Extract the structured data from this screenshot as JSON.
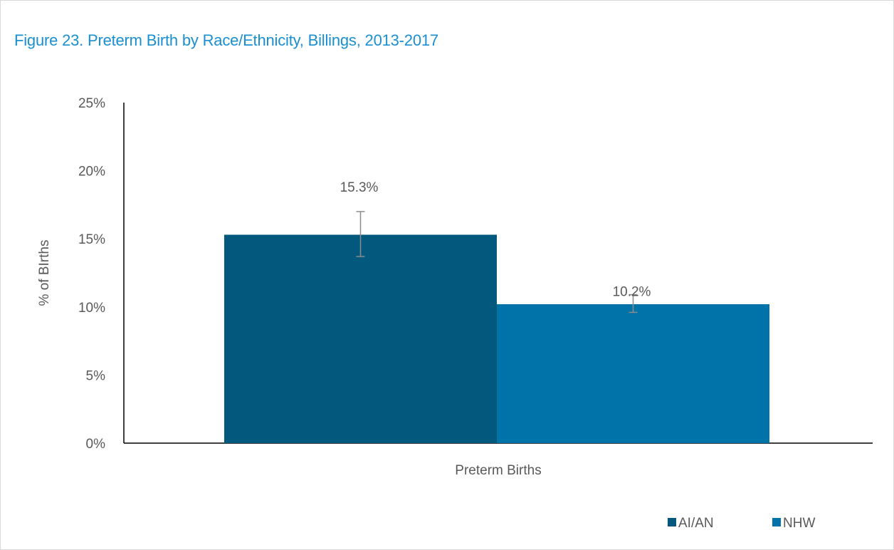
{
  "title": "Figure 23. Preterm Birth by Race/Ethnicity, Billings, 2013-2017",
  "chart_data": {
    "type": "bar",
    "title": "Figure 23. Preterm Birth by Race/Ethnicity, Billings, 2013-2017",
    "categories": [
      "Preterm Births"
    ],
    "xlabel": "",
    "ylabel": "% of BIrths",
    "ylim": [
      0,
      25
    ],
    "yticks": [
      "0%",
      "5%",
      "10%",
      "15%",
      "20%",
      "25%"
    ],
    "ytick_values": [
      0,
      5,
      10,
      15,
      20,
      25
    ],
    "grid": false,
    "legend_position": "bottom-right",
    "series": [
      {
        "name": "AI/AN",
        "values": [
          15.3
        ],
        "labels": [
          "15.3%"
        ],
        "error_low": [
          13.7
        ],
        "error_high": [
          17.0
        ],
        "color": "#02587d"
      },
      {
        "name": "NHW",
        "values": [
          10.2
        ],
        "labels": [
          "10.2%"
        ],
        "error_low": [
          9.6
        ],
        "error_high": [
          10.9
        ],
        "color": "#0173a8"
      }
    ]
  }
}
